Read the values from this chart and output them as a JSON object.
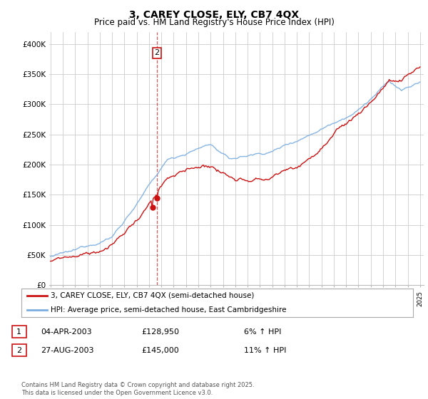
{
  "title": "3, CAREY CLOSE, ELY, CB7 4QX",
  "subtitle": "Price paid vs. HM Land Registry's House Price Index (HPI)",
  "legend_line1": "3, CAREY CLOSE, ELY, CB7 4QX (semi-detached house)",
  "legend_line2": "HPI: Average price, semi-detached house, East Cambridgeshire",
  "footnote": "Contains HM Land Registry data © Crown copyright and database right 2025.\nThis data is licensed under the Open Government Licence v3.0.",
  "table_rows": [
    {
      "num": "1",
      "date": "04-APR-2003",
      "price": "£128,950",
      "hpi": "6% ↑ HPI"
    },
    {
      "num": "2",
      "date": "27-AUG-2003",
      "price": "£145,000",
      "hpi": "11% ↑ HPI"
    }
  ],
  "yticks": [
    0,
    50000,
    100000,
    150000,
    200000,
    250000,
    300000,
    350000,
    400000
  ],
  "ytick_labels": [
    "£0",
    "£50K",
    "£100K",
    "£150K",
    "£200K",
    "£250K",
    "£300K",
    "£350K",
    "£400K"
  ],
  "ylim": [
    0,
    420000
  ],
  "x_start_year": 1995,
  "x_end_year": 2025,
  "sale1_year": 2003.27,
  "sale1_price": 128950,
  "sale2_year": 2003.65,
  "sale2_price": 145000,
  "vline_year": 2003.65,
  "hpi_color": "#7aade0",
  "price_color": "#cc1111",
  "vline_color": "#cc1111",
  "bg_color": "#ffffff",
  "grid_color": "#cccccc",
  "title_fontsize": 10,
  "subtitle_fontsize": 8.5,
  "axis_fontsize": 7.5,
  "annotation_year": 2003.9,
  "annotation_price": 385000
}
